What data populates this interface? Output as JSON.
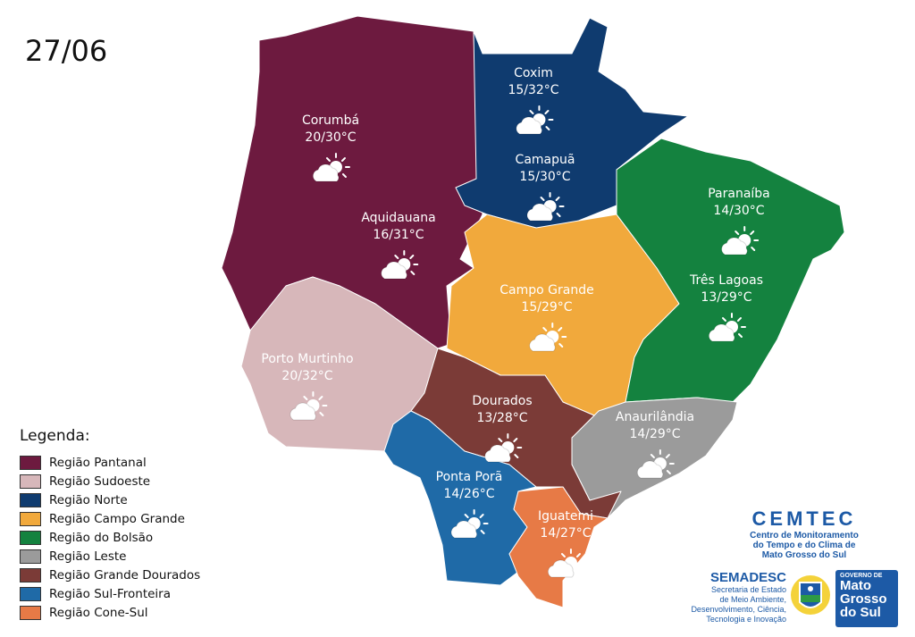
{
  "date": "27/06",
  "legend": {
    "title": "Legenda:",
    "items": [
      {
        "label": "Região Pantanal",
        "color": "#6d1a3f"
      },
      {
        "label": "Região Sudoeste",
        "color": "#d7b7ba"
      },
      {
        "label": "Região Norte",
        "color": "#0f3b6f"
      },
      {
        "label": "Região Campo Grande",
        "color": "#f1a93c"
      },
      {
        "label": "Região do Bolsão",
        "color": "#14823f"
      },
      {
        "label": "Região Leste",
        "color": "#9b9b9b"
      },
      {
        "label": "Região Grande Dourados",
        "color": "#7b3b37"
      },
      {
        "label": "Região Sul-Fronteira",
        "color": "#1f6aa7"
      },
      {
        "label": "Região Cone-Sul",
        "color": "#e77a46"
      }
    ]
  },
  "cities": [
    {
      "name": "Corumbá",
      "temp": "20/30°C",
      "icon": "partly-cloudy-icon"
    },
    {
      "name": "Aquidauana",
      "temp": "16/31°C",
      "icon": "partly-cloudy-icon"
    },
    {
      "name": "Coxim",
      "temp": "15/32°C",
      "icon": "partly-cloudy-icon"
    },
    {
      "name": "Camapuã",
      "temp": "15/30°C",
      "icon": "partly-cloudy-icon"
    },
    {
      "name": "Paranaíba",
      "temp": "14/30°C",
      "icon": "partly-cloudy-icon"
    },
    {
      "name": "Três Lagoas",
      "temp": "13/29°C",
      "icon": "partly-cloudy-icon"
    },
    {
      "name": "Campo Grande",
      "temp": "15/29°C",
      "icon": "partly-cloudy-icon"
    },
    {
      "name": "Porto Murtinho",
      "temp": "20/32°C",
      "icon": "partly-cloudy-icon"
    },
    {
      "name": "Dourados",
      "temp": "13/28°C",
      "icon": "partly-cloudy-icon"
    },
    {
      "name": "Anaurilândia",
      "temp": "14/29°C",
      "icon": "partly-cloudy-icon"
    },
    {
      "name": "Ponta Porã",
      "temp": "14/26°C",
      "icon": "partly-cloudy-icon"
    },
    {
      "name": "Iguatemi",
      "temp": "14/27°C",
      "icon": "partly-cloudy-icon"
    }
  ],
  "logos": {
    "cemtec_title": "CEMTEC",
    "cemtec_sub1": "Centro de Monitoramento",
    "cemtec_sub2": "do Tempo e do Clima de",
    "cemtec_sub3": "Mato Grosso do Sul",
    "semadesc_title": "SEMADESC",
    "semadesc_sub1": "Secretaria de Estado",
    "semadesc_sub2": "de Meio Ambiente,",
    "semadesc_sub3": "Desenvolvimento, Ciência,",
    "semadesc_sub4": "Tecnologia e Inovação",
    "gov_small": "GOVERNO DE",
    "gov_line1": "Mato",
    "gov_line2": "Grosso",
    "gov_line3": "do Sul"
  }
}
